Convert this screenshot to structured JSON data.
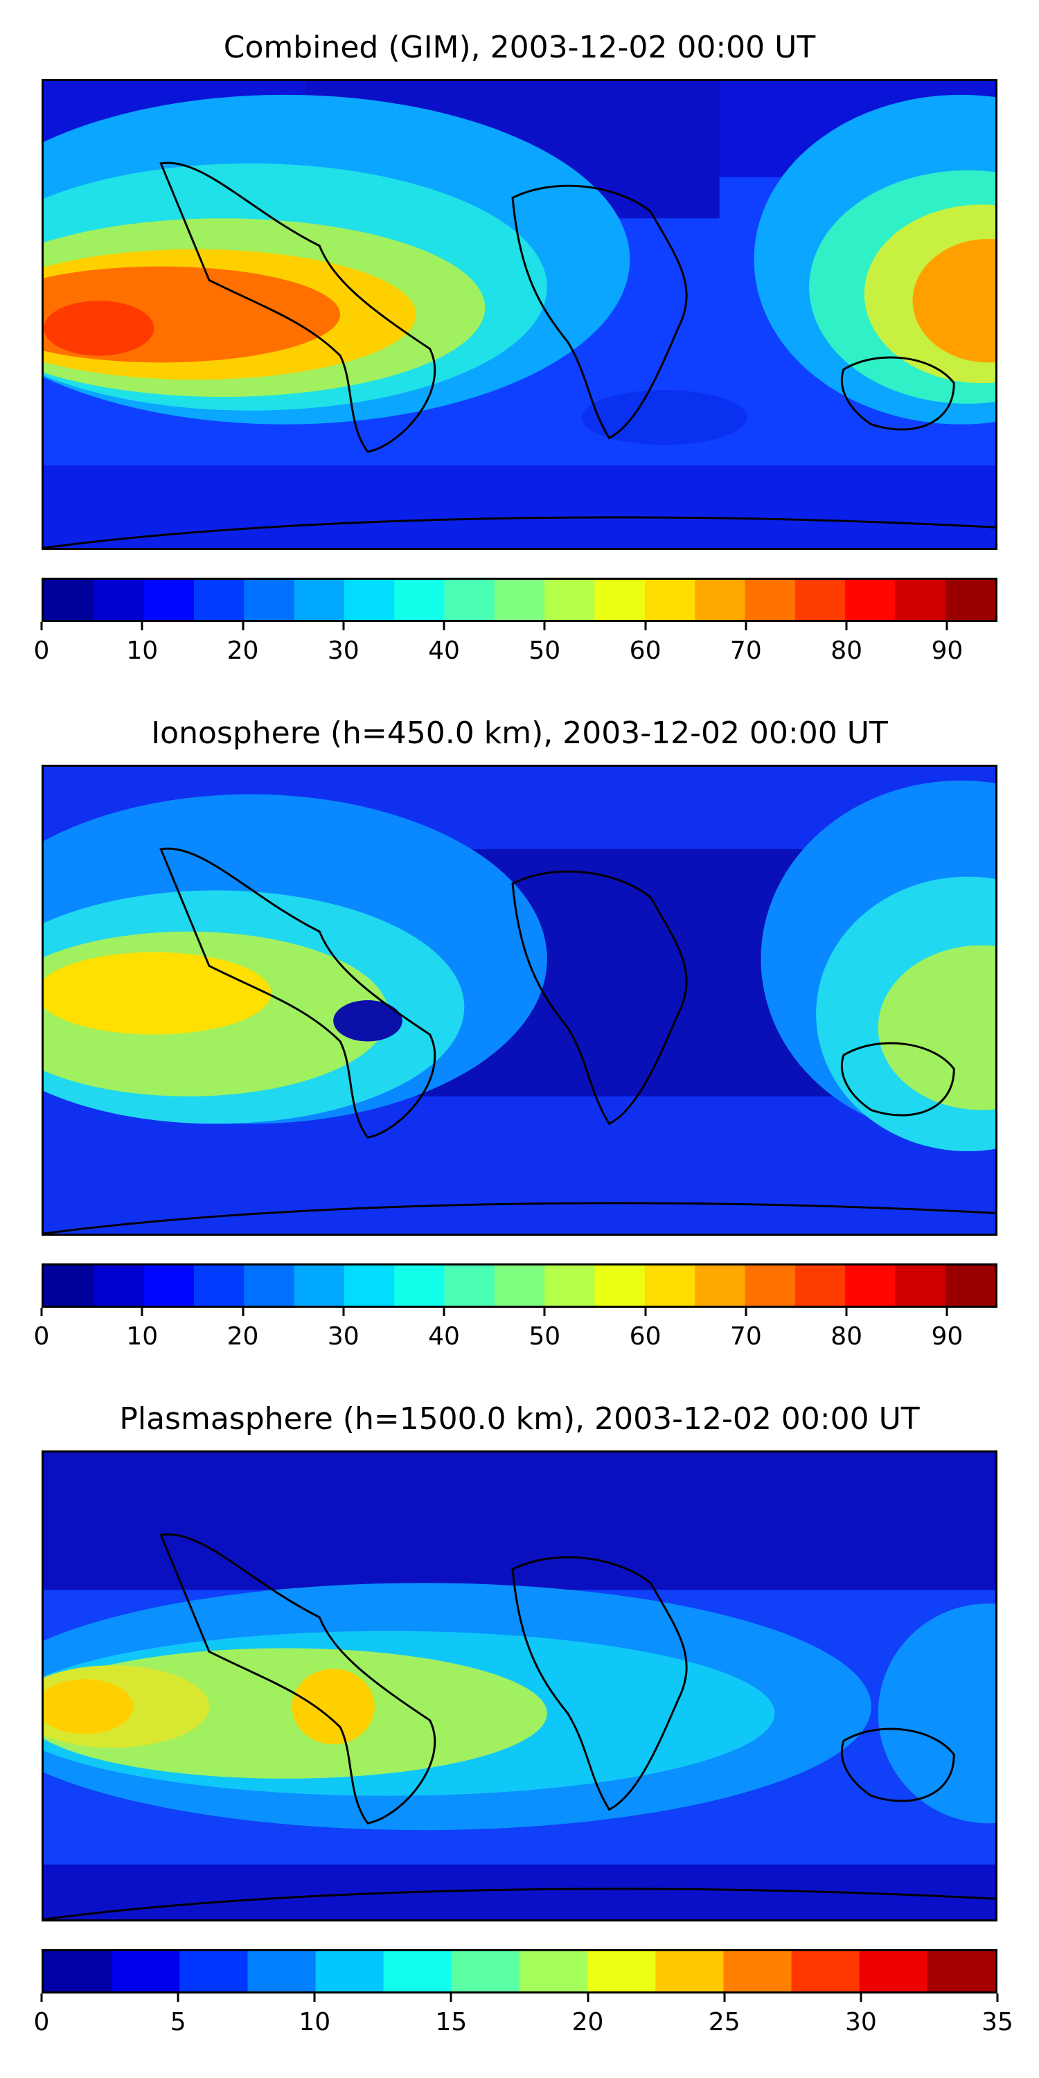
{
  "panels": [
    {
      "title": "Combined (GIM), 2003-12-02 00:00 UT",
      "colorbar": {
        "min": 0,
        "max": 95,
        "step": 5,
        "ticks": [
          "0",
          "10",
          "20",
          "30",
          "40",
          "50",
          "60",
          "70",
          "80",
          "90"
        ],
        "tick_values": [
          0,
          10,
          20,
          30,
          40,
          50,
          60,
          70,
          80,
          90
        ]
      }
    },
    {
      "title": "Ionosphere  (h=450.0 km), 2003-12-02 00:00 UT",
      "colorbar": {
        "min": 0,
        "max": 95,
        "step": 5,
        "ticks": [
          "0",
          "10",
          "20",
          "30",
          "40",
          "50",
          "60",
          "70",
          "80",
          "90"
        ],
        "tick_values": [
          0,
          10,
          20,
          30,
          40,
          50,
          60,
          70,
          80,
          90
        ]
      }
    },
    {
      "title": "Plasmasphere (h=1500.0 km), 2003-12-02 00:00 UT",
      "colorbar": {
        "min": 0,
        "max": 35,
        "step": 2.5,
        "ticks": [
          "0",
          "5",
          "10",
          "15",
          "20",
          "25",
          "30",
          "35"
        ],
        "tick_values": [
          0,
          5,
          10,
          15,
          20,
          25,
          30,
          35
        ]
      }
    }
  ],
  "chart_data": [
    {
      "type": "heatmap",
      "title": "Combined (GIM), 2003-12-02 00:00 UT",
      "colormap": "jet",
      "vmin": 0,
      "vmax": 95,
      "levels_step": 5
    },
    {
      "type": "heatmap",
      "title": "Ionosphere  (h=450.0 km), 2003-12-02 00:00 UT",
      "colormap": "jet",
      "vmin": 0,
      "vmax": 95,
      "levels_step": 5
    },
    {
      "type": "heatmap",
      "title": "Plasmasphere (h=1500.0 km), 2003-12-02 00:00 UT",
      "colormap": "jet",
      "vmin": 0,
      "vmax": 35,
      "levels_step": 2.5
    }
  ]
}
